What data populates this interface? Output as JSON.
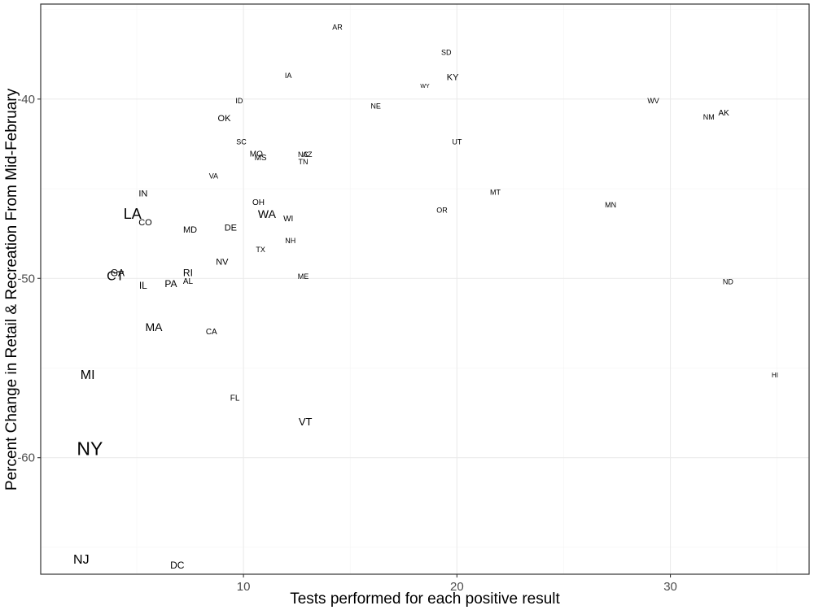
{
  "chart_data": {
    "type": "scatter",
    "xlabel": "Tests performed for each positive result",
    "ylabel": "Percent Change in Retail & Recreation From Mid-February",
    "xlim": [
      0.5,
      36.5
    ],
    "ylim": [
      -66.5,
      -34.7
    ],
    "x_ticks": [
      10,
      20,
      30
    ],
    "x_tick_labels": [
      "10",
      "20",
      "30"
    ],
    "y_ticks": [
      -40,
      -50,
      -60
    ],
    "y_tick_labels": [
      "-40",
      "-50",
      "-60"
    ],
    "grid": true,
    "legend": "none",
    "points": [
      {
        "label": "AR",
        "x": 14.4,
        "y": -36.0,
        "size": 9
      },
      {
        "label": "SD",
        "x": 19.5,
        "y": -37.4,
        "size": 9
      },
      {
        "label": "IA",
        "x": 12.1,
        "y": -38.7,
        "size": 9
      },
      {
        "label": "KY",
        "x": 19.8,
        "y": -38.8,
        "size": 11
      },
      {
        "label": "WY",
        "x": 18.5,
        "y": -39.3,
        "size": 7
      },
      {
        "label": "ID",
        "x": 9.8,
        "y": -40.1,
        "size": 9
      },
      {
        "label": "WV",
        "x": 29.2,
        "y": -40.1,
        "size": 9
      },
      {
        "label": "NE",
        "x": 16.2,
        "y": -40.4,
        "size": 9
      },
      {
        "label": "OK",
        "x": 9.1,
        "y": -41.1,
        "size": 11
      },
      {
        "label": "NM",
        "x": 31.8,
        "y": -41.0,
        "size": 9
      },
      {
        "label": "AK",
        "x": 32.5,
        "y": -40.8,
        "size": 10
      },
      {
        "label": "SC",
        "x": 9.9,
        "y": -42.4,
        "size": 9
      },
      {
        "label": "UT",
        "x": 20.0,
        "y": -42.4,
        "size": 9
      },
      {
        "label": "MO",
        "x": 10.6,
        "y": -43.1,
        "size": 10
      },
      {
        "label": "MS",
        "x": 10.8,
        "y": -43.3,
        "size": 10
      },
      {
        "label": "NC",
        "x": 12.8,
        "y": -43.1,
        "size": 9
      },
      {
        "label": "AZ",
        "x": 13.0,
        "y": -43.1,
        "size": 9
      },
      {
        "label": "TN",
        "x": 12.8,
        "y": -43.5,
        "size": 9
      },
      {
        "label": "VA",
        "x": 8.6,
        "y": -44.3,
        "size": 9
      },
      {
        "label": "IN",
        "x": 5.3,
        "y": -45.3,
        "size": 11
      },
      {
        "label": "MT",
        "x": 21.8,
        "y": -45.2,
        "size": 9
      },
      {
        "label": "OH",
        "x": 10.7,
        "y": -45.8,
        "size": 10
      },
      {
        "label": "MN",
        "x": 27.2,
        "y": -45.9,
        "size": 9
      },
      {
        "label": "LA",
        "x": 4.8,
        "y": -46.4,
        "size": 18
      },
      {
        "label": "WA",
        "x": 11.1,
        "y": -46.4,
        "size": 14
      },
      {
        "label": "OR",
        "x": 19.3,
        "y": -46.2,
        "size": 9
      },
      {
        "label": "WI",
        "x": 12.1,
        "y": -46.7,
        "size": 10
      },
      {
        "label": "CO",
        "x": 5.4,
        "y": -46.9,
        "size": 11
      },
      {
        "label": "MD",
        "x": 7.5,
        "y": -47.3,
        "size": 11
      },
      {
        "label": "DE",
        "x": 9.4,
        "y": -47.2,
        "size": 11
      },
      {
        "label": "NH",
        "x": 12.2,
        "y": -47.9,
        "size": 9
      },
      {
        "label": "TX",
        "x": 10.8,
        "y": -48.4,
        "size": 9
      },
      {
        "label": "NV",
        "x": 9.0,
        "y": -49.1,
        "size": 11
      },
      {
        "label": "GA",
        "x": 4.1,
        "y": -49.7,
        "size": 12
      },
      {
        "label": "CT",
        "x": 4.0,
        "y": -49.9,
        "size": 16
      },
      {
        "label": "RI",
        "x": 7.4,
        "y": -49.7,
        "size": 12
      },
      {
        "label": "ME",
        "x": 12.8,
        "y": -49.9,
        "size": 9
      },
      {
        "label": "AL",
        "x": 7.4,
        "y": -50.2,
        "size": 10
      },
      {
        "label": "PA",
        "x": 6.6,
        "y": -50.3,
        "size": 12
      },
      {
        "label": "IL",
        "x": 5.3,
        "y": -50.4,
        "size": 12
      },
      {
        "label": "ND",
        "x": 32.7,
        "y": -50.2,
        "size": 9
      },
      {
        "label": "MA",
        "x": 5.8,
        "y": -52.7,
        "size": 14
      },
      {
        "label": "CA",
        "x": 8.5,
        "y": -53.0,
        "size": 10
      },
      {
        "label": "MI",
        "x": 2.7,
        "y": -55.4,
        "size": 16
      },
      {
        "label": "HI",
        "x": 34.9,
        "y": -55.4,
        "size": 8
      },
      {
        "label": "FL",
        "x": 9.6,
        "y": -56.7,
        "size": 10
      },
      {
        "label": "VT",
        "x": 12.9,
        "y": -58.0,
        "size": 13
      },
      {
        "label": "NY",
        "x": 2.8,
        "y": -59.5,
        "size": 23
      },
      {
        "label": "NJ",
        "x": 2.4,
        "y": -65.7,
        "size": 16
      },
      {
        "label": "DC",
        "x": 6.9,
        "y": -66.0,
        "size": 12
      }
    ]
  }
}
